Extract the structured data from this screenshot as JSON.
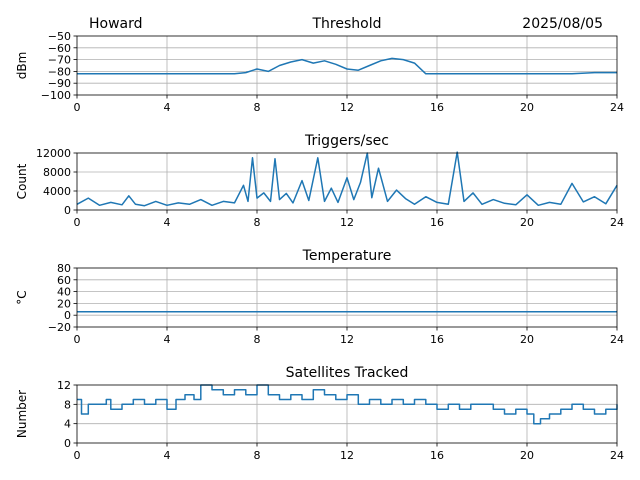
{
  "header": {
    "left": "Howard",
    "right": "2025/08/05"
  },
  "colors": {
    "line": "#1f77b4",
    "grid": "#b0b0b0",
    "axis": "#000000"
  },
  "chart_data": [
    {
      "type": "line",
      "title": "Threshold",
      "xlabel": "",
      "ylabel": "dBm",
      "xlim": [
        0,
        24
      ],
      "ylim": [
        -100,
        -50
      ],
      "xticks": [
        0,
        4,
        8,
        12,
        16,
        20,
        24
      ],
      "yticks": [
        -100,
        -90,
        -80,
        -70,
        -60,
        -50
      ],
      "ytick_labels": [
        "−100",
        "−90",
        "−80",
        "−70",
        "−60",
        "−50"
      ],
      "grid": true,
      "series": [
        {
          "x": [
            0,
            1,
            2,
            3,
            4,
            5,
            6,
            7,
            7.5,
            8,
            8.5,
            9,
            9.5,
            10,
            10.5,
            11,
            11.5,
            12,
            12.5,
            13,
            13.5,
            14,
            14.5,
            15,
            15.5,
            16,
            17,
            18,
            19,
            20,
            21,
            22,
            23,
            24
          ],
          "y": [
            -82,
            -82,
            -82,
            -82,
            -82,
            -82,
            -82,
            -82,
            -81,
            -78,
            -80,
            -75,
            -72,
            -70,
            -73,
            -71,
            -74,
            -78,
            -79,
            -75,
            -71,
            -69,
            -70,
            -73,
            -82,
            -82,
            -82,
            -82,
            -82,
            -82,
            -82,
            -82,
            -81,
            -81
          ]
        }
      ]
    },
    {
      "type": "line",
      "title": "Triggers/sec",
      "xlabel": "",
      "ylabel": "Count",
      "xlim": [
        0,
        24
      ],
      "ylim": [
        0,
        12000
      ],
      "xticks": [
        0,
        4,
        8,
        12,
        16,
        20,
        24
      ],
      "yticks": [
        0,
        4000,
        8000,
        12000
      ],
      "ytick_labels": [
        "0",
        "4000",
        "8000",
        "12000"
      ],
      "grid": true,
      "series": [
        {
          "x": [
            0,
            0.5,
            1,
            1.5,
            2,
            2.3,
            2.6,
            3,
            3.5,
            4,
            4.5,
            5,
            5.5,
            6,
            6.5,
            7,
            7.4,
            7.6,
            7.8,
            8,
            8.3,
            8.6,
            8.8,
            9,
            9.3,
            9.6,
            10,
            10.3,
            10.7,
            11,
            11.3,
            11.6,
            12,
            12.3,
            12.6,
            12.9,
            13.1,
            13.4,
            13.8,
            14.2,
            14.6,
            15,
            15.5,
            16,
            16.5,
            16.9,
            17.2,
            17.6,
            18,
            18.5,
            19,
            19.5,
            20,
            20.5,
            21,
            21.5,
            22,
            22.5,
            23,
            23.5,
            24
          ],
          "y": [
            1200,
            2500,
            1000,
            1600,
            1100,
            3000,
            1200,
            900,
            1800,
            1000,
            1500,
            1200,
            2200,
            1000,
            1800,
            1500,
            5200,
            1800,
            11000,
            2500,
            3600,
            1800,
            10800,
            2200,
            3500,
            1500,
            6200,
            2000,
            11000,
            1800,
            4600,
            1600,
            6800,
            2200,
            5800,
            12000,
            2600,
            8800,
            1800,
            4200,
            2400,
            1200,
            2800,
            1600,
            1200,
            12200,
            1800,
            3600,
            1200,
            2200,
            1400,
            1100,
            3200,
            1000,
            1600,
            1200,
            5600,
            1700,
            2800,
            1300,
            5200
          ]
        }
      ]
    },
    {
      "type": "line",
      "title": "Temperature",
      "xlabel": "",
      "ylabel": "°C",
      "xlim": [
        0,
        24
      ],
      "ylim": [
        -20,
        80
      ],
      "xticks": [
        0,
        4,
        8,
        12,
        16,
        20,
        24
      ],
      "yticks": [
        -20,
        0,
        20,
        40,
        60,
        80
      ],
      "ytick_labels": [
        "−20",
        "0",
        "20",
        "40",
        "60",
        "80"
      ],
      "grid": true,
      "series": [
        {
          "x": [
            0,
            24
          ],
          "y": [
            6,
            6
          ]
        }
      ]
    },
    {
      "type": "line",
      "step": true,
      "title": "Satellites Tracked",
      "xlabel": "",
      "ylabel": "Number",
      "xlim": [
        0,
        24
      ],
      "ylim": [
        0,
        12
      ],
      "xticks": [
        0,
        4,
        8,
        12,
        16,
        20,
        24
      ],
      "yticks": [
        0,
        4,
        8,
        12
      ],
      "ytick_labels": [
        "0",
        "4",
        "8",
        "12"
      ],
      "grid": true,
      "series": [
        {
          "x": [
            0,
            0.2,
            0.5,
            1,
            1.3,
            1.5,
            2,
            2.5,
            3,
            3.5,
            4,
            4.4,
            4.8,
            5.2,
            5.5,
            6,
            6.5,
            7,
            7.5,
            8,
            8.5,
            9,
            9.5,
            10,
            10.5,
            11,
            11.5,
            12,
            12.5,
            13,
            13.5,
            14,
            14.5,
            15,
            15.5,
            16,
            16.5,
            17,
            17.5,
            18,
            18.5,
            19,
            19.5,
            20,
            20.3,
            20.6,
            21,
            21.5,
            22,
            22.5,
            23,
            23.5,
            24
          ],
          "y": [
            9,
            6,
            8,
            8,
            9,
            7,
            8,
            9,
            8,
            9,
            7,
            9,
            10,
            9,
            12,
            11,
            10,
            11,
            10,
            12,
            10,
            9,
            10,
            9,
            11,
            10,
            9,
            10,
            8,
            9,
            8,
            9,
            8,
            9,
            8,
            7,
            8,
            7,
            8,
            8,
            7,
            6,
            7,
            6,
            4,
            5,
            6,
            7,
            8,
            7,
            6,
            7,
            8
          ]
        }
      ]
    }
  ]
}
